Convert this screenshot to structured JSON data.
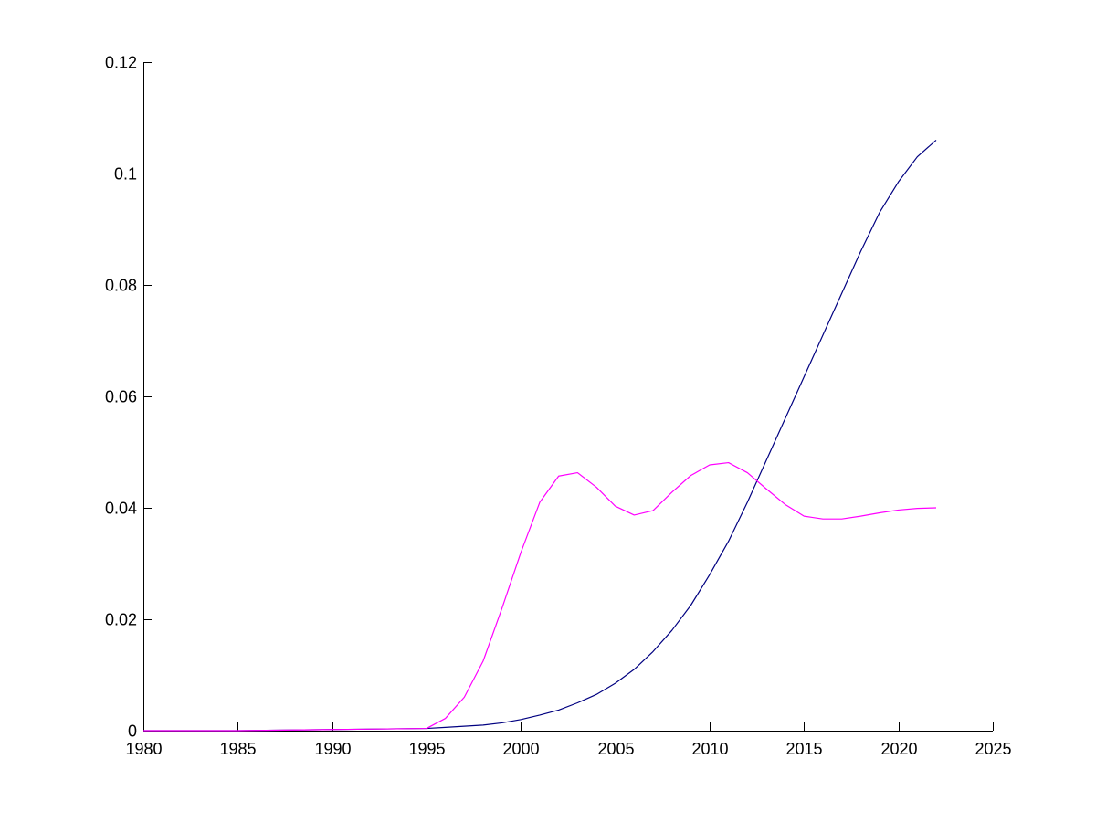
{
  "chart_data": {
    "type": "line",
    "title": "",
    "xlabel": "",
    "ylabel": "",
    "xlim": [
      1980,
      2025
    ],
    "ylim": [
      0,
      0.12
    ],
    "grid": false,
    "x_ticks": [
      1980,
      1985,
      1990,
      1995,
      2000,
      2005,
      2010,
      2015,
      2020,
      2025
    ],
    "x_tick_labels": [
      "1980",
      "1985",
      "1990",
      "1995",
      "2000",
      "2005",
      "2010",
      "2015",
      "2020",
      "2025"
    ],
    "y_ticks": [
      0,
      0.02,
      0.04,
      0.06,
      0.08,
      0.1,
      0.12
    ],
    "y_tick_labels": [
      "0",
      "0.02",
      "0.04",
      "0.06",
      "0.08",
      "0.1",
      "0.12"
    ],
    "series": [
      {
        "color": "#000080",
        "points": [
          [
            1980,
            0.0
          ],
          [
            1985,
            0.0
          ],
          [
            1990,
            0.0002
          ],
          [
            1995,
            0.0004
          ],
          [
            1996,
            0.0006
          ],
          [
            1997,
            0.0008
          ],
          [
            1998,
            0.001
          ],
          [
            1999,
            0.0014
          ],
          [
            2000,
            0.002
          ],
          [
            2001,
            0.0028
          ],
          [
            2002,
            0.0037
          ],
          [
            2003,
            0.005
          ],
          [
            2004,
            0.0065
          ],
          [
            2005,
            0.0085
          ],
          [
            2006,
            0.011
          ],
          [
            2007,
            0.0142
          ],
          [
            2008,
            0.018
          ],
          [
            2009,
            0.0225
          ],
          [
            2010,
            0.028
          ],
          [
            2011,
            0.034
          ],
          [
            2012,
            0.041
          ],
          [
            2013,
            0.0485
          ],
          [
            2014,
            0.056
          ],
          [
            2015,
            0.0635
          ],
          [
            2016,
            0.071
          ],
          [
            2017,
            0.0785
          ],
          [
            2018,
            0.086
          ],
          [
            2019,
            0.093
          ],
          [
            2020,
            0.0985
          ],
          [
            2021,
            0.103
          ],
          [
            2022,
            0.106
          ]
        ]
      },
      {
        "color": "#ff00ff",
        "points": [
          [
            1980,
            0.0
          ],
          [
            1985,
            0.0
          ],
          [
            1990,
            0.0002
          ],
          [
            1995,
            0.0004
          ],
          [
            1996,
            0.0022
          ],
          [
            1997,
            0.006
          ],
          [
            1998,
            0.0125
          ],
          [
            1999,
            0.022
          ],
          [
            2000,
            0.032
          ],
          [
            2001,
            0.041
          ],
          [
            2002,
            0.0457
          ],
          [
            2003,
            0.0463
          ],
          [
            2004,
            0.0437
          ],
          [
            2005,
            0.0403
          ],
          [
            2006,
            0.0387
          ],
          [
            2007,
            0.0395
          ],
          [
            2008,
            0.0428
          ],
          [
            2009,
            0.0458
          ],
          [
            2010,
            0.0477
          ],
          [
            2011,
            0.0481
          ],
          [
            2012,
            0.0463
          ],
          [
            2013,
            0.0434
          ],
          [
            2014,
            0.0406
          ],
          [
            2015,
            0.0385
          ],
          [
            2016,
            0.038
          ],
          [
            2017,
            0.038
          ],
          [
            2018,
            0.0385
          ],
          [
            2019,
            0.0391
          ],
          [
            2020,
            0.0396
          ],
          [
            2021,
            0.0399
          ],
          [
            2022,
            0.04
          ]
        ]
      }
    ]
  }
}
